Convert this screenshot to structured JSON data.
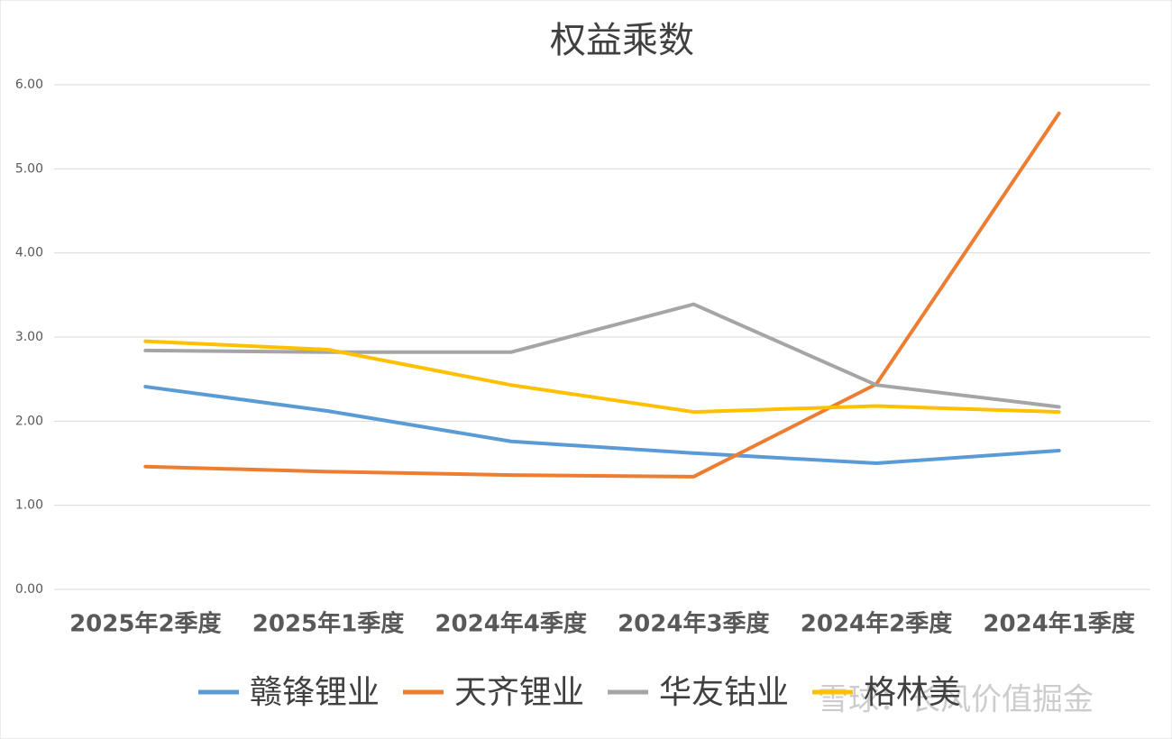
{
  "chart_data": {
    "type": "line",
    "title": "权益乘数",
    "categories": [
      "2025年2季度",
      "2025年1季度",
      "2024年4季度",
      "2024年3季度",
      "2024年2季度",
      "2024年1季度"
    ],
    "series": [
      {
        "name": "赣锋锂业",
        "color": "#5b9bd5",
        "values": [
          2.41,
          2.12,
          1.76,
          1.62,
          1.5,
          1.65
        ]
      },
      {
        "name": "天齐锂业",
        "color": "#ed7d31",
        "values": [
          1.46,
          1.4,
          1.36,
          1.34,
          2.44,
          5.66
        ]
      },
      {
        "name": "华友钴业",
        "color": "#a5a5a5",
        "values": [
          2.84,
          2.82,
          2.82,
          3.39,
          2.43,
          2.17
        ]
      },
      {
        "name": "格林美",
        "color": "#ffc000",
        "values": [
          2.95,
          2.85,
          2.43,
          2.11,
          2.18,
          2.11
        ]
      }
    ],
    "ylim": [
      0,
      6
    ],
    "yticks": [
      {
        "value": 0,
        "label": "0.00"
      },
      {
        "value": 1,
        "label": "1.00"
      },
      {
        "value": 2,
        "label": "2.00"
      },
      {
        "value": 3,
        "label": "3.00"
      },
      {
        "value": 4,
        "label": "4.00"
      },
      {
        "value": 5,
        "label": "5.00"
      },
      {
        "value": 6,
        "label": "6.00"
      }
    ],
    "grid": true,
    "watermark": "雪球：长风价值掘金"
  }
}
